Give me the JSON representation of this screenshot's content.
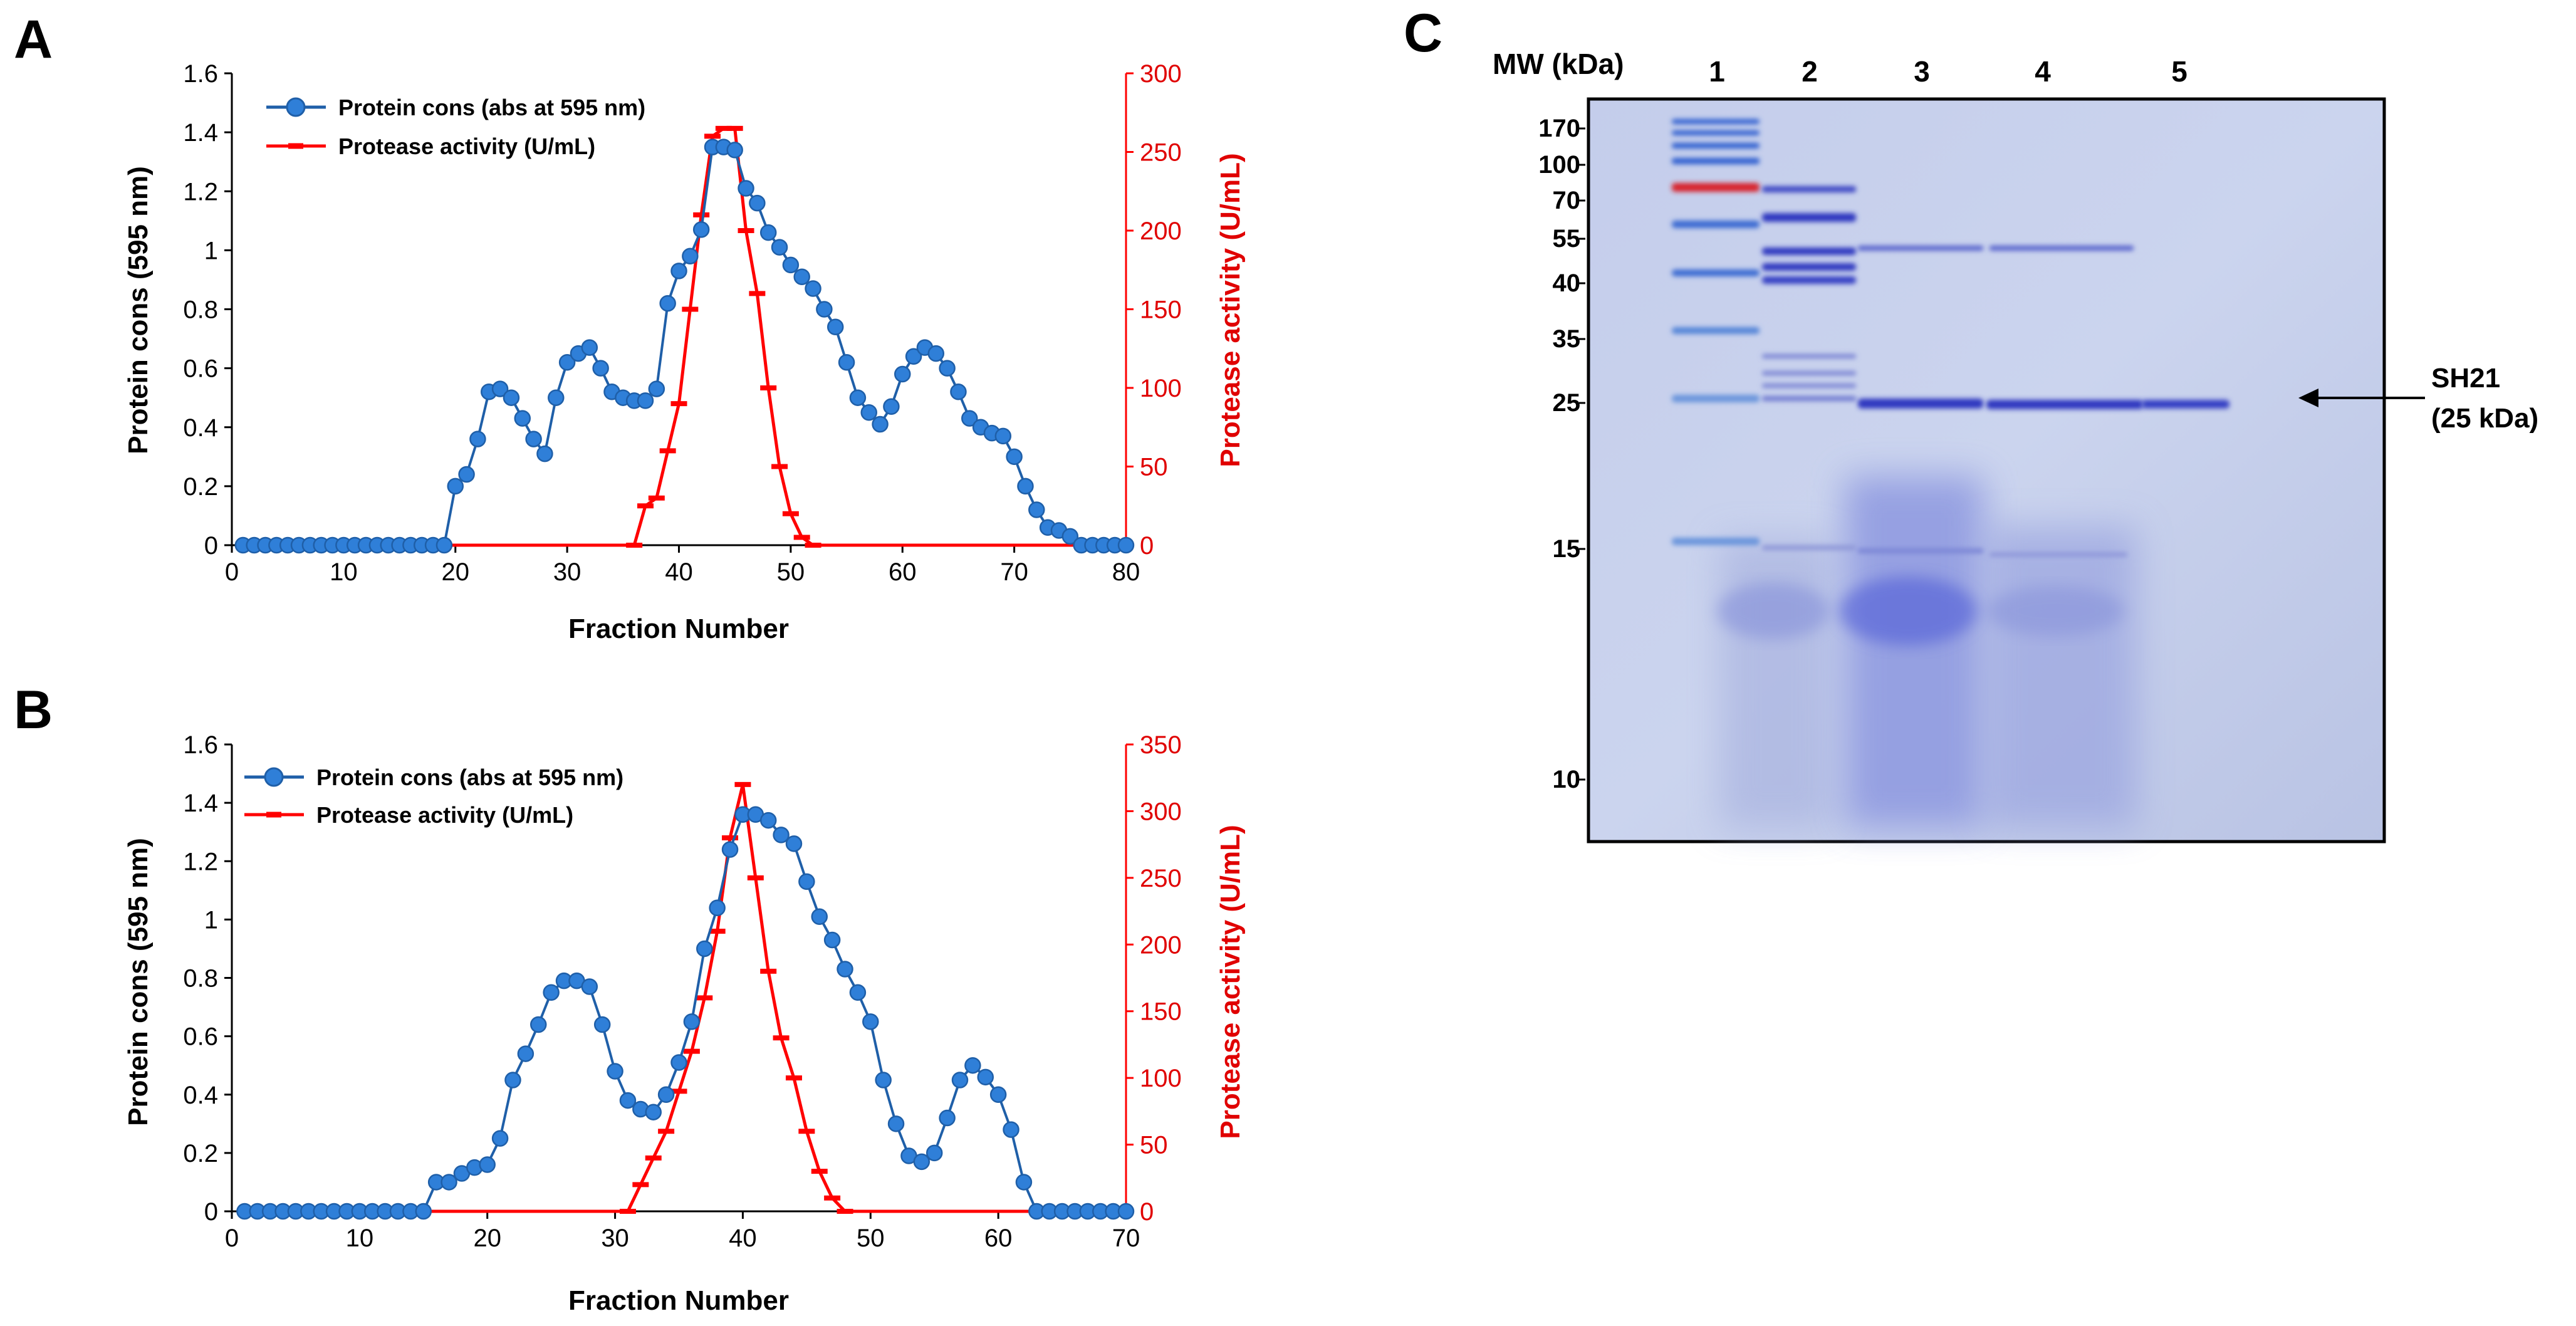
{
  "colors": {
    "protein": "#1f5fa8",
    "protein_fill": "#2f7fd8",
    "activity": "#ff0000",
    "gel_bg": "#c9d3ec",
    "band": "#3c47c4"
  },
  "chart_data": [
    {
      "panel": "A",
      "type": "line",
      "xlabel": "Fraction Number",
      "ylabel": "Protein cons (595 nm)",
      "y2label": "Protease activity (U/mL)",
      "xlim": [
        0,
        80
      ],
      "xticks": [
        "0",
        "10",
        "20",
        "30",
        "40",
        "50",
        "60",
        "70",
        "80"
      ],
      "ylim": [
        0,
        1.6
      ],
      "yticks": [
        "0",
        "0.2",
        "0.4",
        "0.6",
        "0.8",
        "1",
        "1.2",
        "1.4",
        "1.6"
      ],
      "y2lim": [
        0,
        300
      ],
      "y2ticks": [
        "0",
        "50",
        "100",
        "150",
        "200",
        "250",
        "300"
      ],
      "legend": [
        "Protein cons (abs at 595 nm)",
        "Protease activity (U/mL)"
      ],
      "series": [
        {
          "name": "Protein cons (abs at 595 nm)",
          "axis": "left",
          "x": [
            1,
            2,
            3,
            4,
            5,
            6,
            7,
            8,
            9,
            10,
            11,
            12,
            13,
            14,
            15,
            16,
            17,
            18,
            19,
            20,
            21,
            22,
            23,
            24,
            25,
            26,
            27,
            28,
            29,
            30,
            31,
            32,
            33,
            34,
            35,
            36,
            37,
            38,
            39,
            40,
            41,
            42,
            43,
            44,
            45,
            46,
            47,
            48,
            49,
            50,
            51,
            52,
            53,
            54,
            55,
            56,
            57,
            58,
            59,
            60,
            61,
            62,
            63,
            64,
            65,
            66,
            67,
            68,
            69,
            70,
            71,
            72,
            73,
            74,
            75,
            76,
            77,
            78,
            79,
            80
          ],
          "values": [
            0,
            0,
            0,
            0,
            0,
            0,
            0,
            0,
            0,
            0,
            0,
            0,
            0,
            0,
            0,
            0,
            0,
            0,
            0,
            0.2,
            0.24,
            0.36,
            0.52,
            0.53,
            0.5,
            0.43,
            0.36,
            0.31,
            0.5,
            0.62,
            0.65,
            0.67,
            0.6,
            0.52,
            0.5,
            0.49,
            0.49,
            0.53,
            0.82,
            0.93,
            0.98,
            1.07,
            1.35,
            1.35,
            1.34,
            1.21,
            1.16,
            1.06,
            1.01,
            0.95,
            0.91,
            0.87,
            0.8,
            0.74,
            0.62,
            0.5,
            0.45,
            0.41,
            0.47,
            0.58,
            0.64,
            0.67,
            0.65,
            0.6,
            0.52,
            0.43,
            0.4,
            0.38,
            0.37,
            0.3,
            0.2,
            0.12,
            0.06,
            0.05,
            0.03,
            0,
            0,
            0,
            0,
            0
          ]
        },
        {
          "name": "Protease activity (U/mL)",
          "axis": "right",
          "x": [
            36,
            37,
            38,
            39,
            40,
            41,
            42,
            43,
            44,
            45,
            46,
            47,
            48,
            49,
            50,
            51,
            52
          ],
          "values": [
            0,
            25,
            30,
            60,
            90,
            150,
            210,
            260,
            265,
            265,
            200,
            160,
            100,
            50,
            20,
            5,
            0
          ]
        }
      ]
    },
    {
      "panel": "B",
      "type": "line",
      "xlabel": "Fraction Number",
      "ylabel": "Protein cons (595 nm)",
      "y2label": "Protease activity (U/mL)",
      "xlim": [
        0,
        70
      ],
      "xticks": [
        "0",
        "10",
        "20",
        "30",
        "40",
        "50",
        "60",
        "70"
      ],
      "ylim": [
        0,
        1.6
      ],
      "yticks": [
        "0",
        "0.2",
        "0.4",
        "0.6",
        "0.8",
        "1",
        "1.2",
        "1.4",
        "1.6"
      ],
      "y2lim": [
        0,
        350
      ],
      "y2ticks": [
        "0",
        "50",
        "100",
        "150",
        "200",
        "250",
        "300",
        "350"
      ],
      "legend": [
        "Protein cons (abs at 595 nm)",
        "Protease activity (U/mL)"
      ],
      "series": [
        {
          "name": "Protein cons (abs at 595 nm)",
          "axis": "left",
          "x": [
            1,
            2,
            3,
            4,
            5,
            6,
            7,
            8,
            9,
            10,
            11,
            12,
            13,
            14,
            15,
            16,
            17,
            18,
            19,
            20,
            21,
            22,
            23,
            24,
            25,
            26,
            27,
            28,
            29,
            30,
            31,
            32,
            33,
            34,
            35,
            36,
            37,
            38,
            39,
            40,
            41,
            42,
            43,
            44,
            45,
            46,
            47,
            48,
            49,
            50,
            51,
            52,
            53,
            54,
            55,
            56,
            57,
            58,
            59,
            60,
            61,
            62,
            63,
            64,
            65,
            66,
            67,
            68,
            69,
            70
          ],
          "values": [
            0,
            0,
            0,
            0,
            0,
            0,
            0,
            0,
            0,
            0,
            0,
            0,
            0,
            0,
            0,
            0.1,
            0.1,
            0.13,
            0.15,
            0.16,
            0.25,
            0.45,
            0.54,
            0.64,
            0.75,
            0.79,
            0.79,
            0.77,
            0.64,
            0.48,
            0.38,
            0.35,
            0.34,
            0.4,
            0.51,
            0.65,
            0.9,
            1.04,
            1.24,
            1.36,
            1.36,
            1.34,
            1.29,
            1.26,
            1.13,
            1.01,
            0.93,
            0.83,
            0.75,
            0.65,
            0.45,
            0.3,
            0.19,
            0.17,
            0.2,
            0.32,
            0.45,
            0.5,
            0.46,
            0.4,
            0.28,
            0.1,
            0,
            0,
            0,
            0,
            0,
            0,
            0,
            0
          ]
        },
        {
          "name": "Protease activity (U/mL)",
          "axis": "right",
          "x": [
            31,
            32,
            33,
            34,
            35,
            36,
            37,
            38,
            39,
            40,
            41,
            42,
            43,
            44,
            45,
            46,
            47,
            48
          ],
          "values": [
            0,
            20,
            40,
            60,
            90,
            120,
            160,
            210,
            280,
            320,
            250,
            180,
            130,
            100,
            60,
            30,
            10,
            0
          ]
        }
      ]
    }
  ],
  "panel_labels": {
    "a": "A",
    "b": "B",
    "c": "C"
  },
  "gel": {
    "mw_header": "MW (kDa)",
    "lanes": [
      "1",
      "2",
      "3",
      "4",
      "5"
    ],
    "mw_markers": [
      "170",
      "100",
      "70",
      "55",
      "40",
      "35",
      "25",
      "15",
      "10"
    ],
    "annotation_name": "SH21",
    "annotation_size": "(25 kDa)"
  }
}
